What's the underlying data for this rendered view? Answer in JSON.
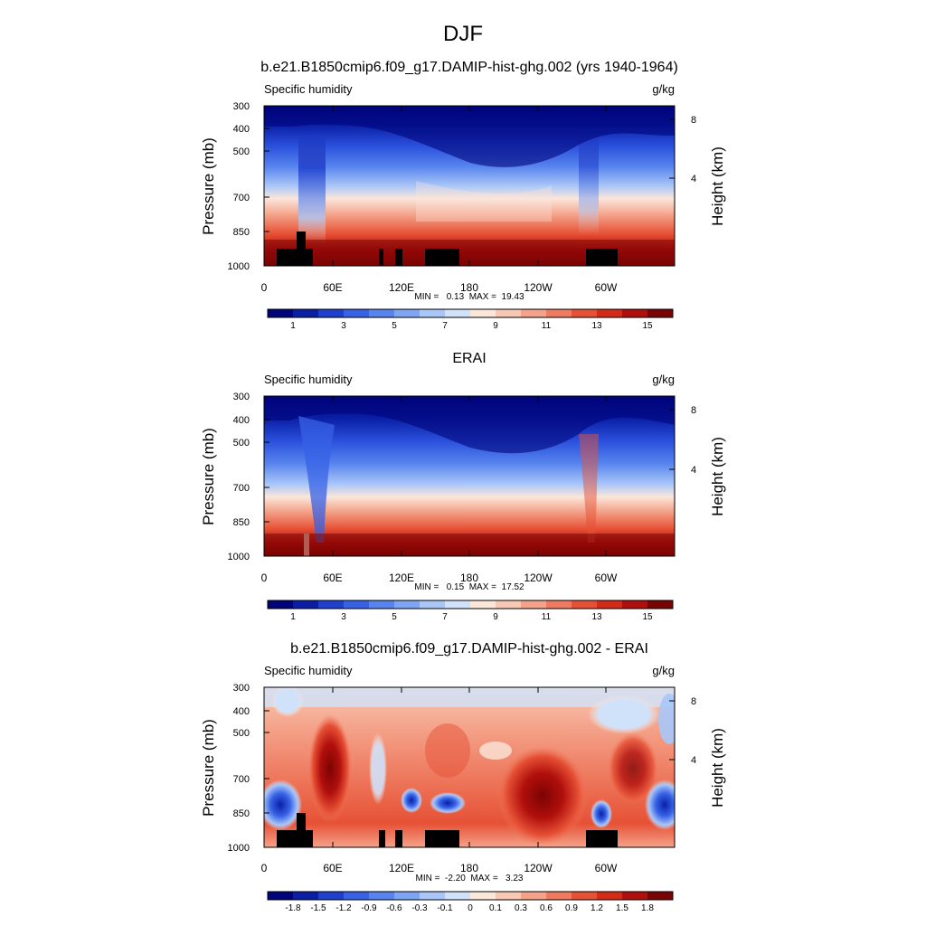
{
  "figure": {
    "title": "DJF"
  },
  "panels_meta": {
    "left_label": "Specific humidity",
    "right_label": "g/kg",
    "ylabel": "Pressure (mb)",
    "y2label": "Height (km)"
  },
  "chart_data": [
    {
      "type": "heatmap",
      "title": "b.e21.B1850cmip6.f09_g17.DAMIP-hist-ghg.002 (yrs 1940-1964)",
      "variable": "Specific humidity",
      "units": "g/kg",
      "ylabel": "Pressure (mb)",
      "y2label": "Height (km)",
      "x_ticks": [
        "0",
        "60E",
        "120E",
        "180",
        "120W",
        "60W"
      ],
      "y_ticks": [
        "300",
        "400",
        "500",
        "700",
        "850",
        "1000"
      ],
      "y2_ticks": [
        "8",
        "4"
      ],
      "stats": "MIN =   0.13  MAX =  19.43",
      "colorbar_labels": [
        "1",
        "3",
        "5",
        "7",
        "9",
        "11",
        "13",
        "15"
      ],
      "colorbar_colors": [
        "#00047a",
        "#0a1fa6",
        "#1f3fcf",
        "#3762e6",
        "#5784ee",
        "#7ea5f4",
        "#a9c6f8",
        "#d0e2fa",
        "#fbe6da",
        "#f8c8b4",
        "#f4a38a",
        "#ee7a5f",
        "#e65135",
        "#d62a19",
        "#b10f0c",
        "#7a0403"
      ]
    },
    {
      "type": "heatmap",
      "title": "ERAI",
      "variable": "Specific humidity",
      "units": "g/kg",
      "ylabel": "Pressure (mb)",
      "y2label": "Height (km)",
      "x_ticks": [
        "0",
        "60E",
        "120E",
        "180",
        "120W",
        "60W"
      ],
      "y_ticks": [
        "300",
        "400",
        "500",
        "700",
        "850",
        "1000"
      ],
      "y2_ticks": [
        "8",
        "4"
      ],
      "stats": "MIN =   0.15  MAX =  17.52",
      "colorbar_labels": [
        "1",
        "3",
        "5",
        "7",
        "9",
        "11",
        "13",
        "15"
      ],
      "colorbar_colors": [
        "#00047a",
        "#0a1fa6",
        "#1f3fcf",
        "#3762e6",
        "#5784ee",
        "#7ea5f4",
        "#a9c6f8",
        "#d0e2fa",
        "#fbe6da",
        "#f8c8b4",
        "#f4a38a",
        "#ee7a5f",
        "#e65135",
        "#d62a19",
        "#b10f0c",
        "#7a0403"
      ]
    },
    {
      "type": "heatmap",
      "title": "b.e21.B1850cmip6.f09_g17.DAMIP-hist-ghg.002 - ERAI",
      "variable": "Specific humidity",
      "units": "g/kg",
      "ylabel": "Pressure (mb)",
      "y2label": "Height (km)",
      "x_ticks": [
        "0",
        "60E",
        "120E",
        "180",
        "120W",
        "60W"
      ],
      "y_ticks": [
        "300",
        "400",
        "500",
        "700",
        "850",
        "1000"
      ],
      "y2_ticks": [
        "8",
        "4"
      ],
      "stats": "MIN =  -2.20  MAX =   3.23",
      "colorbar_labels": [
        "-1.8",
        "-1.5",
        "-1.2",
        "-0.9",
        "-0.6",
        "-0.3",
        "-0.1",
        "0",
        "0.1",
        "0.3",
        "0.6",
        "0.9",
        "1.2",
        "1.5",
        "1.8"
      ],
      "colorbar_colors": [
        "#00047a",
        "#0a1fa6",
        "#1f3fcf",
        "#3762e6",
        "#5784ee",
        "#7ea5f4",
        "#a9c6f8",
        "#d0e2fa",
        "#fbe6da",
        "#f8c8b4",
        "#f4a38a",
        "#ee7a5f",
        "#e65135",
        "#d62a19",
        "#b10f0c",
        "#7a0403"
      ]
    }
  ]
}
